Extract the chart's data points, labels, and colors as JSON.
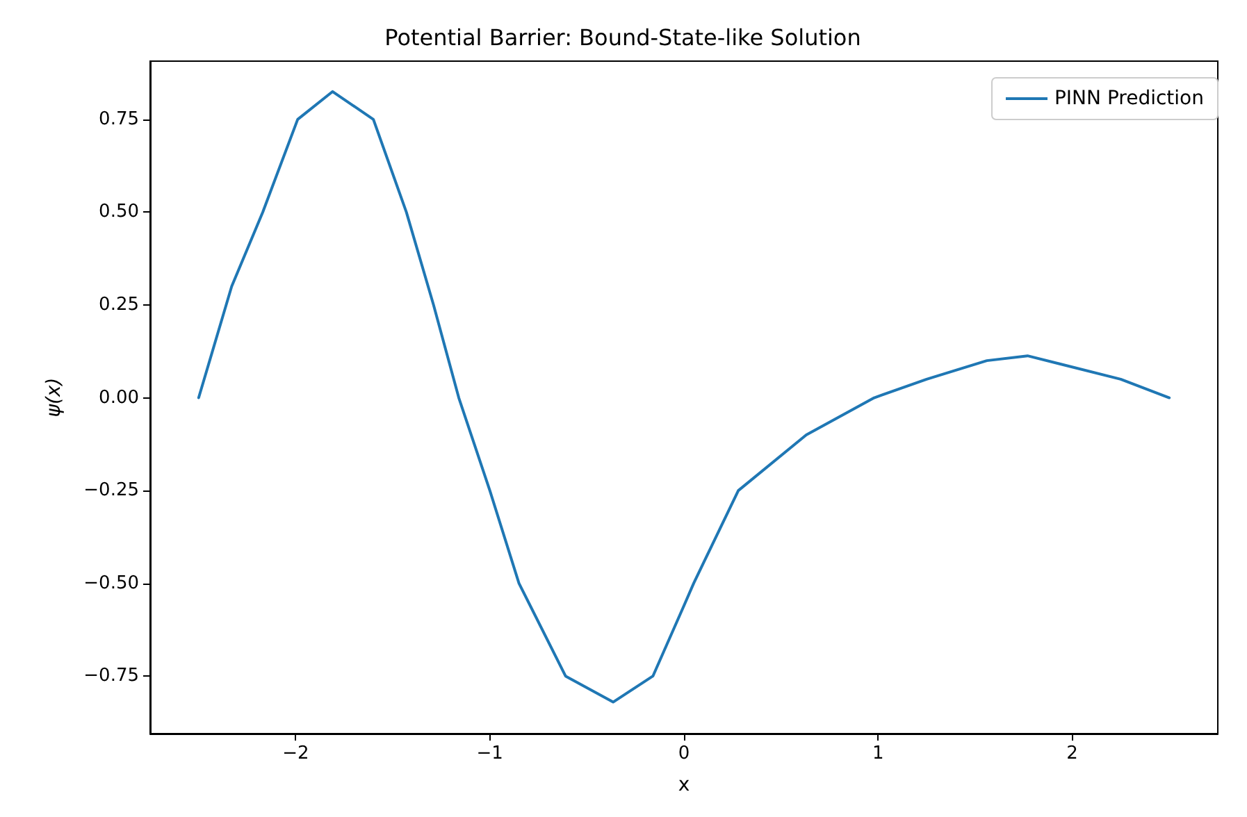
{
  "chart_data": {
    "type": "line",
    "title": "Potential Barrier: Bound-State-like Solution",
    "xlabel": "x",
    "ylabel": "ψ(x)",
    "xlim": [
      -2.75,
      2.75
    ],
    "ylim": [
      -0.905,
      0.907
    ],
    "xticks": [
      {
        "value": -2,
        "label": "−2"
      },
      {
        "value": -1,
        "label": "−1"
      },
      0,
      1,
      2
    ],
    "yticks": [
      {
        "value": -0.75,
        "label": "−0.75"
      },
      {
        "value": -0.5,
        "label": "−0.50"
      },
      {
        "value": -0.25,
        "label": "−0.25"
      },
      {
        "value": 0,
        "label": "0.00"
      },
      {
        "value": 0.25,
        "label": "0.25"
      },
      {
        "value": 0.5,
        "label": "0.50"
      },
      {
        "value": 0.75,
        "label": "0.75"
      }
    ],
    "grid": false,
    "legend": "top right",
    "marker": "none",
    "line_style": "solid",
    "series": [
      {
        "name": "PINN Prediction",
        "color": "#1f77b4",
        "x": [
          -2.5,
          -2.33,
          -2.17,
          -1.99,
          -1.81,
          -1.6,
          -1.43,
          -1.29,
          -1.16,
          -1.0,
          -0.85,
          -0.61,
          -0.365,
          -0.16,
          0,
          0.05,
          0.28,
          0.63,
          0.98,
          1.25,
          1.56,
          1.77,
          2.25,
          2.5
        ],
        "values": [
          0,
          0.3,
          0.5,
          0.75,
          0.825,
          0.75,
          0.5,
          0.25,
          0,
          -0.25,
          -0.5,
          -0.75,
          -0.82,
          -0.75,
          -0.56,
          -0.5,
          -0.25,
          -0.1,
          0,
          0.05,
          0.1,
          0.113,
          0.05,
          0
        ]
      }
    ]
  }
}
